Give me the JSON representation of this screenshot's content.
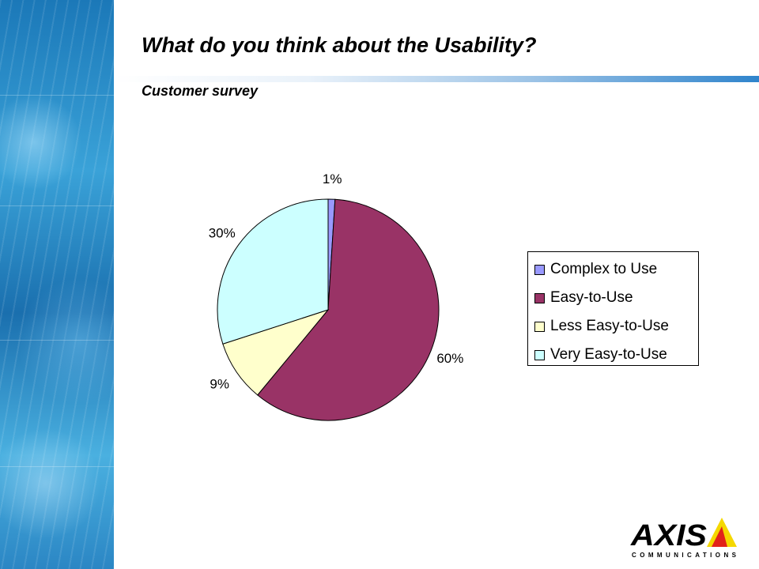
{
  "slide": {
    "title": "What do you think about the Usability?",
    "subtitle": "Customer survey"
  },
  "chart_data": {
    "type": "pie",
    "categories": [
      "Complex to Use",
      "Easy-to-Use",
      "Less Easy-to-Use",
      "Very Easy-to-Use"
    ],
    "values": [
      1,
      60,
      9,
      30
    ],
    "labels": [
      "1%",
      "60%",
      "9%",
      "30%"
    ],
    "colors": [
      "#9999ff",
      "#993366",
      "#ffffcc",
      "#ccffff"
    ],
    "legend_position": "right"
  },
  "logo": {
    "brand": "AXIS",
    "tagline": "COMMUNICATIONS",
    "brand_color": "#000000",
    "accent_color": "#f5d800",
    "accent_red": "#e2231a"
  }
}
